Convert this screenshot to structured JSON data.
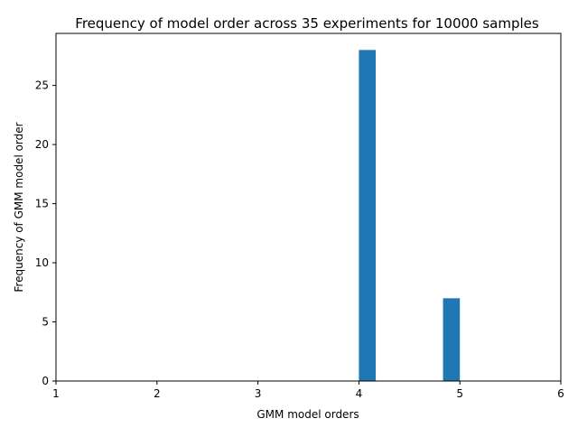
{
  "chart_data": {
    "type": "bar",
    "title": "Frequency of model order across 35 experiments for 10000 samples",
    "xlabel": "GMM model orders",
    "ylabel": "Frequency of GMM model order",
    "xlim": [
      1,
      6
    ],
    "ylim": [
      0,
      29.4
    ],
    "x_ticks": [
      1,
      2,
      3,
      4,
      5,
      6
    ],
    "y_ticks": [
      0,
      5,
      10,
      15,
      20,
      25
    ],
    "bar_width": 0.1667,
    "bars": [
      {
        "x_start": 4.0,
        "x_end": 4.1667,
        "value": 28
      },
      {
        "x_start": 4.8333,
        "x_end": 5.0,
        "value": 7
      }
    ],
    "bar_color": "#1f77b4",
    "grid": false
  }
}
